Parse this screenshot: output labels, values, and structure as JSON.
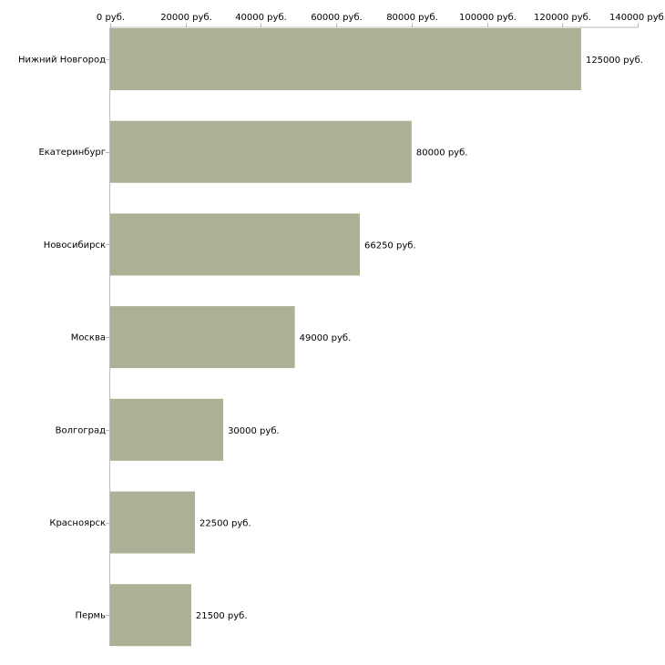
{
  "chart_data": {
    "type": "bar",
    "orientation": "horizontal",
    "categories": [
      "Нижний Новгород",
      "Екатеринбург",
      "Новосибирск",
      "Москва",
      "Волгоград",
      "Красноярск",
      "Пермь"
    ],
    "values": [
      125000,
      80000,
      66250,
      49000,
      30000,
      22500,
      21500
    ],
    "value_labels": [
      "125000 руб.",
      "80000 руб.",
      "66250 руб.",
      "49000 руб.",
      "30000 руб.",
      "22500 руб.",
      "21500 руб."
    ],
    "x_ticks": [
      0,
      20000,
      40000,
      60000,
      80000,
      100000,
      120000,
      140000
    ],
    "x_tick_labels": [
      "0 руб.",
      "20000 руб.",
      "40000 руб.",
      "60000 руб.",
      "80000 руб.",
      "100000 руб.",
      "120000 руб.",
      "140000 руб."
    ],
    "xlim": [
      0,
      140000
    ],
    "title": "",
    "xlabel": "",
    "ylabel": "",
    "axis_position": "top",
    "grid": false,
    "legend": "none",
    "bar_color": "#acb195",
    "axis_color": "#bbbbbb"
  }
}
